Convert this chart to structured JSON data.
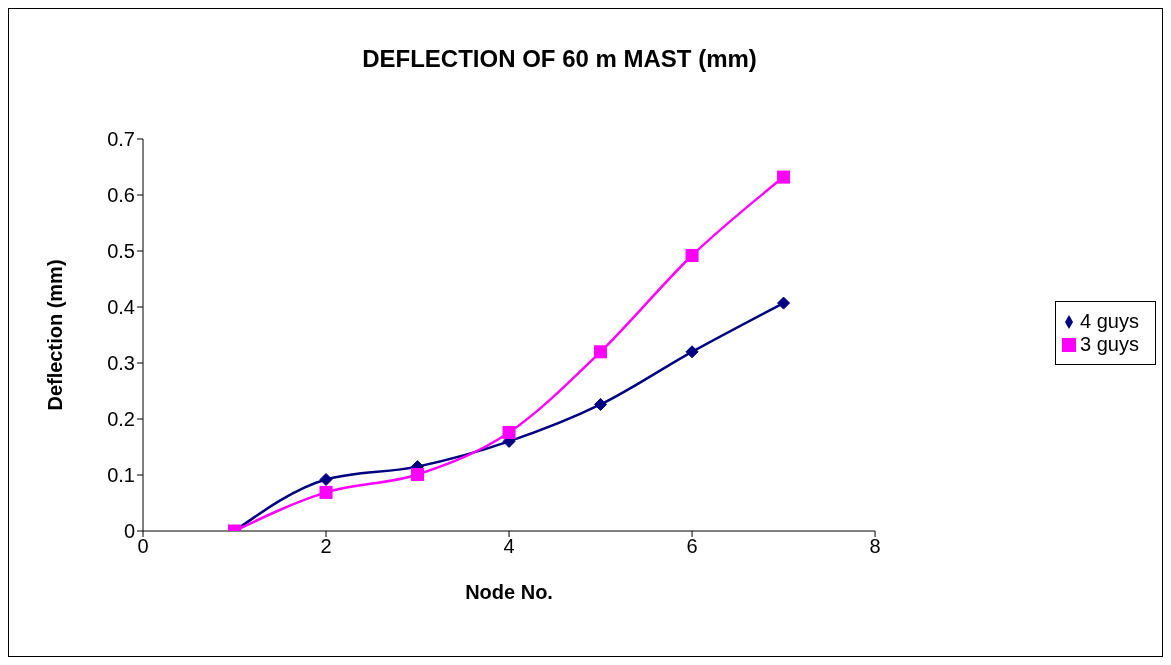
{
  "chart_data": {
    "type": "line",
    "title": "DEFLECTION  OF 60 m MAST (mm)",
    "xlabel": "Node No.",
    "ylabel": "Deflection (mm)",
    "x": [
      1,
      2,
      3,
      4,
      5,
      6,
      7
    ],
    "series": [
      {
        "name": "4 guys",
        "color": "#000080",
        "marker": "diamond",
        "values": [
          0,
          0.092,
          0.115,
          0.16,
          0.226,
          0.32,
          0.407
        ]
      },
      {
        "name": "3 guys",
        "color": "#ff00ff",
        "marker": "square",
        "values": [
          0,
          0.069,
          0.101,
          0.176,
          0.32,
          0.492,
          0.632
        ]
      }
    ],
    "xlim": [
      0,
      8
    ],
    "xticks": [
      0,
      2,
      4,
      6,
      8
    ],
    "ylim": [
      0,
      0.7
    ],
    "yticks": [
      0,
      0.1,
      0.2,
      0.3,
      0.4,
      0.5,
      0.6,
      0.7
    ],
    "grid": false,
    "legend": "right",
    "line_style": "solid"
  }
}
